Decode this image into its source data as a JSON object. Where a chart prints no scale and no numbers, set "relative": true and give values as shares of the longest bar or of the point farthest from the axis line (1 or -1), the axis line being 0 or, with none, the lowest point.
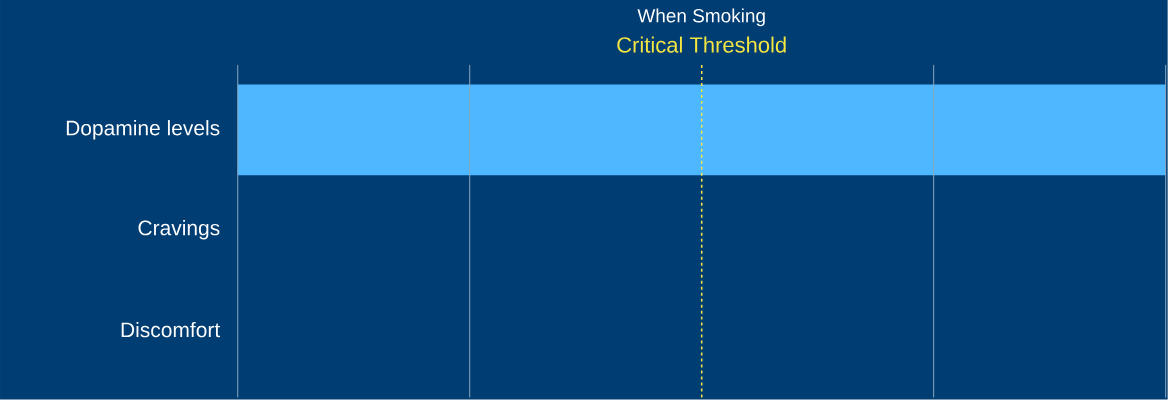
{
  "chart_data": {
    "type": "bar",
    "orientation": "horizontal",
    "relative": true,
    "title": "When Smoking",
    "categories": [
      "Dopamine levels",
      "Cravings",
      "Discomfort"
    ],
    "values": [
      1,
      0,
      0
    ],
    "color": "#4db8ff",
    "ref_lines": [
      {
        "axis": "x",
        "value": 0.5,
        "label": "Critical Threshold",
        "color": "#f5e642",
        "line_style": "dashed"
      },
      {
        "axis": "x",
        "value": 0,
        "color": "#8ca8c0",
        "line_style": "solid"
      },
      {
        "axis": "x",
        "value": 0.25,
        "color": "#8ca8c0",
        "line_style": "solid"
      },
      {
        "axis": "x",
        "value": 0.75,
        "color": "#8ca8c0",
        "line_style": "solid"
      },
      {
        "axis": "x",
        "value": 1,
        "color": "#8ca8c0",
        "line_style": "solid"
      }
    ]
  }
}
